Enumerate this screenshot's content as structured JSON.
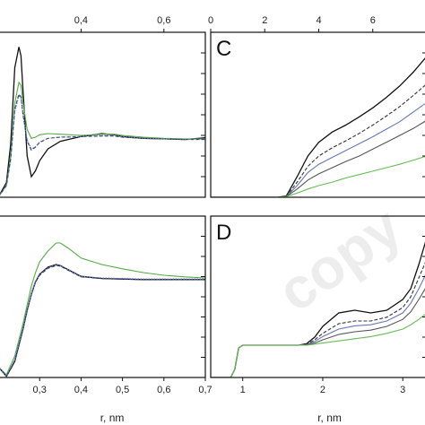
{
  "chart_data": [
    {
      "panel": "A",
      "type": "line",
      "letter": "",
      "xlim": [
        0.2,
        0.7
      ],
      "top_axis_ticks": [
        "0,4",
        "0,6"
      ],
      "top_axis_values": [
        0.4,
        0.6
      ],
      "series": [
        {
          "color": "#111111",
          "dash": "solid",
          "x": [
            0.2,
            0.22,
            0.23,
            0.24,
            0.25,
            0.255,
            0.26,
            0.27,
            0.28,
            0.29,
            0.3,
            0.32,
            0.35,
            0.4,
            0.45,
            0.48,
            0.5,
            0.55,
            0.6,
            0.65,
            0.7
          ],
          "y": [
            0.0,
            0.25,
            0.9,
            2.2,
            2.55,
            2.4,
            1.8,
            0.7,
            0.35,
            0.45,
            0.62,
            0.82,
            0.95,
            1.03,
            1.08,
            1.06,
            1.03,
            1.0,
            0.99,
            0.98,
            1.01
          ]
        },
        {
          "color": "#55aa44",
          "dash": "solid",
          "x": [
            0.2,
            0.22,
            0.23,
            0.24,
            0.25,
            0.255,
            0.26,
            0.27,
            0.28,
            0.29,
            0.3,
            0.32,
            0.35,
            0.4,
            0.45,
            0.48,
            0.5,
            0.55,
            0.6,
            0.65,
            0.7
          ],
          "y": [
            0.0,
            0.2,
            0.7,
            1.6,
            1.95,
            1.9,
            1.6,
            1.15,
            1.0,
            1.02,
            1.06,
            1.08,
            1.07,
            1.05,
            1.07,
            1.07,
            1.05,
            1.02,
            1.0,
            0.99,
            0.99
          ]
        },
        {
          "color": "#223366",
          "dash": "dashed",
          "x": [
            0.2,
            0.22,
            0.23,
            0.24,
            0.25,
            0.255,
            0.26,
            0.27,
            0.28,
            0.29,
            0.3,
            0.32,
            0.35,
            0.4,
            0.45,
            0.48,
            0.5,
            0.55,
            0.6,
            0.65,
            0.7
          ],
          "y": [
            0.0,
            0.2,
            0.65,
            1.5,
            1.75,
            1.7,
            1.4,
            0.95,
            0.8,
            0.85,
            0.93,
            1.0,
            1.02,
            1.03,
            1.04,
            1.04,
            1.02,
            1.0,
            0.99,
            0.98,
            0.98
          ]
        },
        {
          "color": "#6677bb",
          "dash": "dotted",
          "x": [
            0.2,
            0.22,
            0.23,
            0.24,
            0.25,
            0.255,
            0.26,
            0.27,
            0.28,
            0.29,
            0.3,
            0.32,
            0.35,
            0.4,
            0.45,
            0.48,
            0.5,
            0.55,
            0.6,
            0.65,
            0.7
          ],
          "y": [
            0.0,
            0.2,
            0.62,
            1.45,
            1.72,
            1.68,
            1.42,
            0.97,
            0.82,
            0.86,
            0.94,
            1.0,
            1.02,
            1.03,
            1.05,
            1.05,
            1.03,
            1.0,
            0.99,
            0.985,
            0.985
          ]
        }
      ],
      "ylim": [
        0,
        2.8
      ]
    },
    {
      "panel": "B",
      "type": "line",
      "letter": "",
      "xlim": [
        0.2,
        0.7
      ],
      "bottom_axis_ticks": [
        "0,3",
        "0,4",
        "0,5",
        "0,6",
        "0,7"
      ],
      "bottom_axis_values": [
        0.3,
        0.4,
        0.5,
        0.6,
        0.7
      ],
      "xlabel": "r,  nm",
      "series": [
        {
          "color": "#55aa44",
          "dash": "solid",
          "x": [
            0.2,
            0.22,
            0.24,
            0.26,
            0.27,
            0.28,
            0.29,
            0.3,
            0.32,
            0.34,
            0.35,
            0.37,
            0.4,
            0.45,
            0.5,
            0.55,
            0.6,
            0.65,
            0.7
          ],
          "y": [
            -0.6,
            -0.75,
            -0.4,
            0.2,
            0.55,
            0.9,
            1.15,
            1.35,
            1.55,
            1.7,
            1.7,
            1.6,
            1.42,
            1.3,
            1.22,
            1.15,
            1.1,
            1.07,
            1.05
          ]
        },
        {
          "color": "#111111",
          "dash": "solid",
          "x": [
            0.2,
            0.22,
            0.24,
            0.26,
            0.27,
            0.28,
            0.29,
            0.3,
            0.32,
            0.34,
            0.35,
            0.37,
            0.4,
            0.45,
            0.5,
            0.55,
            0.6,
            0.65,
            0.7
          ],
          "y": [
            -0.6,
            -0.78,
            -0.5,
            0.1,
            0.45,
            0.75,
            0.98,
            1.12,
            1.25,
            1.3,
            1.28,
            1.2,
            1.08,
            1.04,
            1.03,
            1.02,
            1.02,
            1.02,
            1.02
          ]
        },
        {
          "color": "#223366",
          "dash": "dashed",
          "x": [
            0.2,
            0.22,
            0.24,
            0.26,
            0.27,
            0.28,
            0.29,
            0.3,
            0.32,
            0.34,
            0.35,
            0.37,
            0.4,
            0.45,
            0.5,
            0.55,
            0.6,
            0.65,
            0.7
          ],
          "y": [
            -0.6,
            -0.78,
            -0.48,
            0.1,
            0.44,
            0.74,
            0.97,
            1.1,
            1.23,
            1.28,
            1.27,
            1.19,
            1.07,
            1.04,
            1.03,
            1.02,
            1.02,
            1.02,
            1.02
          ]
        },
        {
          "color": "#6677bb",
          "dash": "dotted",
          "x": [
            0.2,
            0.22,
            0.24,
            0.26,
            0.27,
            0.28,
            0.29,
            0.3,
            0.32,
            0.34,
            0.35,
            0.37,
            0.4,
            0.45,
            0.5,
            0.55,
            0.6,
            0.65,
            0.7
          ],
          "y": [
            -0.6,
            -0.77,
            -0.47,
            0.12,
            0.46,
            0.76,
            0.99,
            1.12,
            1.24,
            1.29,
            1.28,
            1.2,
            1.08,
            1.05,
            1.04,
            1.03,
            1.03,
            1.03,
            1.03
          ]
        }
      ],
      "ylim": [
        -0.8,
        2.2
      ]
    },
    {
      "panel": "C",
      "type": "line",
      "letter": "C",
      "xlim": [
        0,
        8
      ],
      "top_axis_ticks": [
        "0",
        "2",
        "4",
        "6"
      ],
      "top_axis_values": [
        0,
        2,
        4,
        6
      ],
      "series": [
        {
          "color": "#111111",
          "dash": "solid",
          "x": [
            0,
            1.5,
            2.5,
            2.8,
            3.2,
            3.6,
            4.0,
            4.5,
            5.0,
            5.5,
            6.0,
            6.5,
            7.0,
            7.5,
            8.0
          ],
          "y": [
            0,
            0,
            0,
            0.02,
            0.3,
            0.6,
            0.8,
            0.95,
            1.05,
            1.17,
            1.3,
            1.45,
            1.62,
            1.82,
            2.05
          ]
        },
        {
          "color": "#333333",
          "dash": "dashed",
          "x": [
            0,
            1.5,
            2.5,
            2.8,
            3.2,
            3.6,
            4.0,
            4.5,
            5.0,
            5.5,
            6.0,
            6.5,
            7.0,
            7.5,
            8.0
          ],
          "y": [
            0,
            0,
            0,
            0.01,
            0.22,
            0.45,
            0.6,
            0.72,
            0.82,
            0.93,
            1.05,
            1.18,
            1.32,
            1.48,
            1.65
          ]
        },
        {
          "color": "#6677bb",
          "dash": "solid",
          "x": [
            0,
            1.5,
            2.5,
            2.8,
            3.2,
            3.6,
            4.0,
            4.5,
            5.0,
            5.5,
            6.0,
            6.5,
            7.0,
            7.5,
            8.0
          ],
          "y": [
            0,
            0,
            0,
            0.01,
            0.17,
            0.36,
            0.48,
            0.58,
            0.68,
            0.78,
            0.88,
            0.99,
            1.1,
            1.24,
            1.38
          ]
        },
        {
          "color": "#555555",
          "dash": "solid",
          "x": [
            0,
            1.5,
            2.5,
            2.8,
            3.2,
            3.6,
            4.0,
            4.5,
            5.0,
            5.5,
            6.0,
            6.5,
            7.0,
            7.5,
            8.0
          ],
          "y": [
            0,
            0,
            0,
            0.01,
            0.12,
            0.25,
            0.34,
            0.43,
            0.52,
            0.6,
            0.7,
            0.8,
            0.9,
            1.0,
            1.12
          ]
        },
        {
          "color": "#66bb55",
          "dash": "solid",
          "x": [
            0,
            1.5,
            2.5,
            2.8,
            3.2,
            3.6,
            4.0,
            4.5,
            5.0,
            5.5,
            6.0,
            6.5,
            7.0,
            7.5,
            8.0
          ],
          "y": [
            0,
            0,
            0,
            0.01,
            0.06,
            0.12,
            0.17,
            0.22,
            0.28,
            0.33,
            0.38,
            0.43,
            0.48,
            0.54,
            0.6
          ]
        }
      ],
      "ylim": [
        0,
        2.4
      ]
    },
    {
      "panel": "D",
      "type": "line",
      "letter": "D",
      "xlim": [
        0.6,
        3.3
      ],
      "bottom_axis_ticks": [
        "1",
        "2",
        "3"
      ],
      "bottom_axis_values": [
        1,
        2,
        3
      ],
      "xlabel": "r,  nm",
      "series": [
        {
          "color": "#111111",
          "dash": "solid",
          "x": [
            0.6,
            0.85,
            0.9,
            0.95,
            1.0,
            1.2,
            1.5,
            1.7,
            1.8,
            1.9,
            2.0,
            2.2,
            2.4,
            2.6,
            2.8,
            3.0,
            3.1,
            3.2,
            3.3
          ],
          "y": [
            0,
            0,
            0.15,
            0.55,
            0.6,
            0.6,
            0.6,
            0.6,
            0.63,
            0.75,
            0.95,
            1.2,
            1.25,
            1.2,
            1.25,
            1.45,
            1.65,
            2.1,
            2.6
          ]
        },
        {
          "color": "#333333",
          "dash": "dashed",
          "x": [
            0.6,
            0.85,
            0.9,
            0.95,
            1.0,
            1.2,
            1.5,
            1.7,
            1.8,
            1.9,
            2.0,
            2.2,
            2.4,
            2.6,
            2.8,
            3.0,
            3.1,
            3.2,
            3.3
          ],
          "y": [
            0,
            0,
            0.15,
            0.55,
            0.6,
            0.6,
            0.6,
            0.6,
            0.62,
            0.7,
            0.82,
            1.0,
            1.05,
            1.05,
            1.12,
            1.3,
            1.5,
            1.85,
            2.2
          ]
        },
        {
          "color": "#6677bb",
          "dash": "solid",
          "x": [
            0.6,
            0.85,
            0.9,
            0.95,
            1.0,
            1.2,
            1.5,
            1.7,
            1.8,
            1.9,
            2.0,
            2.2,
            2.4,
            2.6,
            2.8,
            3.0,
            3.1,
            3.2,
            3.3
          ],
          "y": [
            0,
            0,
            0.15,
            0.55,
            0.6,
            0.6,
            0.6,
            0.6,
            0.61,
            0.67,
            0.76,
            0.9,
            0.96,
            0.98,
            1.05,
            1.2,
            1.38,
            1.65,
            1.95
          ]
        },
        {
          "color": "#555555",
          "dash": "solid",
          "x": [
            0.6,
            0.85,
            0.9,
            0.95,
            1.0,
            1.2,
            1.5,
            1.7,
            1.8,
            1.9,
            2.0,
            2.2,
            2.4,
            2.6,
            2.8,
            3.0,
            3.1,
            3.2,
            3.3
          ],
          "y": [
            0,
            0,
            0.15,
            0.55,
            0.6,
            0.6,
            0.6,
            0.6,
            0.61,
            0.64,
            0.7,
            0.8,
            0.85,
            0.88,
            0.95,
            1.08,
            1.22,
            1.45,
            1.7
          ]
        },
        {
          "color": "#66bb55",
          "dash": "solid",
          "x": [
            0.6,
            0.85,
            0.9,
            0.95,
            1.0,
            1.2,
            1.5,
            1.7,
            1.8,
            1.9,
            2.0,
            2.2,
            2.4,
            2.6,
            2.8,
            3.0,
            3.1,
            3.2,
            3.3
          ],
          "y": [
            0,
            0,
            0.15,
            0.55,
            0.6,
            0.6,
            0.6,
            0.6,
            0.6,
            0.62,
            0.64,
            0.68,
            0.72,
            0.76,
            0.82,
            0.9,
            0.98,
            1.08,
            1.2
          ]
        }
      ],
      "ylim": [
        0,
        3.0
      ]
    }
  ],
  "watermark": "copy"
}
